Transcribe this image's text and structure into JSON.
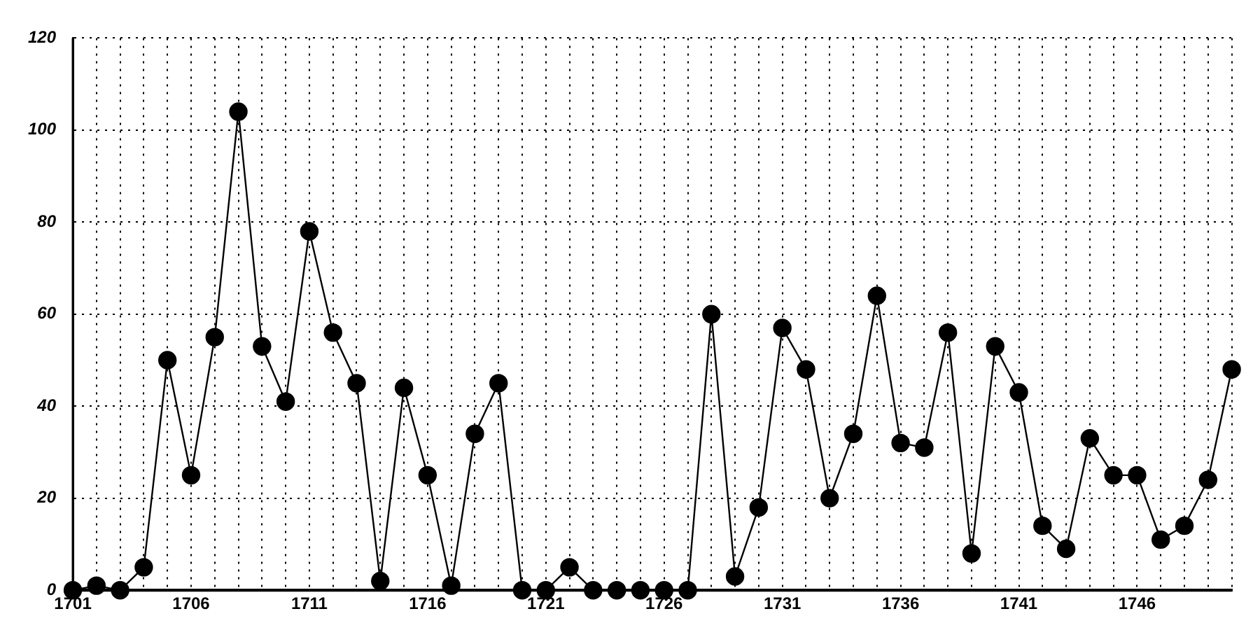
{
  "chart_data": {
    "type": "line",
    "x": [
      1701,
      1702,
      1703,
      1704,
      1705,
      1706,
      1707,
      1708,
      1709,
      1710,
      1711,
      1712,
      1713,
      1714,
      1715,
      1716,
      1717,
      1718,
      1719,
      1720,
      1721,
      1722,
      1723,
      1724,
      1725,
      1726,
      1727,
      1728,
      1729,
      1730,
      1731,
      1732,
      1733,
      1734,
      1735,
      1736,
      1737,
      1738,
      1739,
      1740,
      1741,
      1742,
      1743,
      1744,
      1745,
      1746,
      1747,
      1748,
      1749,
      1750
    ],
    "series": [
      {
        "color": "#000000",
        "values": [
          0,
          1,
          0,
          5,
          50,
          25,
          55,
          104,
          53,
          41,
          78,
          56,
          45,
          2,
          44,
          25,
          1,
          34,
          45,
          0,
          0,
          5,
          0,
          0,
          0,
          0,
          0,
          60,
          3,
          18,
          57,
          48,
          20,
          34,
          64,
          32,
          31,
          56,
          8,
          53,
          43,
          14,
          9,
          33,
          25,
          25,
          11,
          14,
          24,
          48
        ]
      }
    ],
    "xlim": [
      1701,
      1750
    ],
    "xticks": [
      1701,
      {
        "value": 1702,
        "label": null
      },
      {
        "value": 1703,
        "label": null
      },
      {
        "value": 1704,
        "label": null
      },
      {
        "value": 1705,
        "label": null
      },
      1706,
      {
        "value": 1707,
        "label": null
      },
      {
        "value": 1708,
        "label": null
      },
      {
        "value": 1709,
        "label": null
      },
      {
        "value": 1710,
        "label": null
      },
      1711,
      {
        "value": 1712,
        "label": null
      },
      {
        "value": 1713,
        "label": null
      },
      {
        "value": 1714,
        "label": null
      },
      {
        "value": 1715,
        "label": null
      },
      1716,
      {
        "value": 1717,
        "label": null
      },
      {
        "value": 1718,
        "label": null
      },
      {
        "value": 1719,
        "label": null
      },
      {
        "value": 1720,
        "label": null
      },
      1721,
      {
        "value": 1722,
        "label": null
      },
      {
        "value": 1723,
        "label": null
      },
      {
        "value": 1724,
        "label": null
      },
      {
        "value": 1725,
        "label": null
      },
      1726,
      {
        "value": 1727,
        "label": null
      },
      {
        "value": 1728,
        "label": null
      },
      {
        "value": 1729,
        "label": null
      },
      {
        "value": 1730,
        "label": null
      },
      1731,
      {
        "value": 1732,
        "label": null
      },
      {
        "value": 1733,
        "label": null
      },
      {
        "value": 1734,
        "label": null
      },
      {
        "value": 1735,
        "label": null
      },
      1736,
      {
        "value": 1737,
        "label": null
      },
      {
        "value": 1738,
        "label": null
      },
      {
        "value": 1739,
        "label": null
      },
      {
        "value": 1740,
        "label": null
      },
      1741,
      {
        "value": 1742,
        "label": null
      },
      {
        "value": 1743,
        "label": null
      },
      {
        "value": 1744,
        "label": null
      },
      {
        "value": 1745,
        "label": null
      },
      1746,
      {
        "value": 1747,
        "label": null
      },
      {
        "value": 1748,
        "label": null
      },
      {
        "value": 1749,
        "label": null
      },
      {
        "value": 1750,
        "label": null
      }
    ],
    "ylim": [
      0,
      120
    ],
    "yticks": [
      0,
      20,
      40,
      60,
      80,
      100,
      120
    ],
    "grid": true,
    "marker": "circle",
    "line_style": "solid",
    "legend": false
  }
}
